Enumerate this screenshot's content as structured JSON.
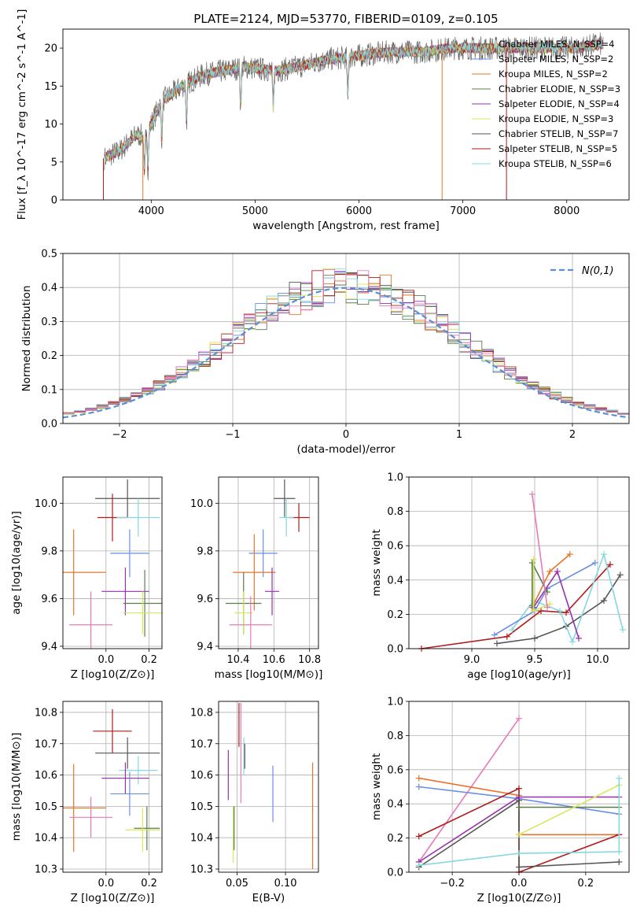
{
  "figure": {
    "title": "PLATE=2124, MJD=53770, FIBERID=0109, z=0.105"
  },
  "chart_data": [
    {
      "id": "spectrum",
      "type": "line",
      "xlabel": "wavelength [Angstrom, rest frame]",
      "ylabel": "Flux [f_λ 10^-17 erg cm^-2 s^-1 A^-1]",
      "xlim": [
        3150,
        8600
      ],
      "ylim": [
        0,
        22.5
      ],
      "xticks": [
        4000,
        5000,
        6000,
        7000,
        8000
      ],
      "yticks": [
        0,
        5,
        10,
        15,
        20
      ],
      "grid": false,
      "legend_position": "right",
      "series": [
        {
          "name": "Chabrier MILES, N_SSP=4",
          "color": "#5a7d4a"
        },
        {
          "name": "Salpeter MILES, N_SSP=2",
          "color": "#6a8ee0"
        },
        {
          "name": "Kroupa MILES, N_SSP=2",
          "color": "#e8742a"
        },
        {
          "name": "Chabrier ELODIE, N_SSP=3",
          "color": "#5a7d4a"
        },
        {
          "name": "Salpeter ELODIE, N_SSP=4",
          "color": "#9a2fae"
        },
        {
          "name": "Kroupa ELODIE, N_SSP=3",
          "color": "#d7e85a"
        },
        {
          "name": "Chabrier STELIB, N_SSP=7",
          "color": "#555555"
        },
        {
          "name": "Salpeter STELIB, N_SSP=5",
          "color": "#b01c1c"
        },
        {
          "name": "Kroupa STELIB, N_SSP=6",
          "color": "#86d8df"
        }
      ],
      "continuum_points": [
        [
          3550,
          5.5
        ],
        [
          3700,
          6.5
        ],
        [
          3850,
          8.5
        ],
        [
          3950,
          8.5
        ],
        [
          4100,
          13
        ],
        [
          4300,
          15
        ],
        [
          4500,
          16.5
        ],
        [
          4700,
          17
        ],
        [
          4900,
          17.5
        ],
        [
          5200,
          17
        ],
        [
          5400,
          17.5
        ],
        [
          5700,
          18.5
        ],
        [
          6000,
          19
        ],
        [
          6300,
          19.5
        ],
        [
          6600,
          19.5
        ],
        [
          6900,
          20
        ],
        [
          7200,
          20
        ],
        [
          7500,
          20
        ],
        [
          7800,
          20
        ],
        [
          8100,
          20
        ],
        [
          8300,
          20.5
        ]
      ],
      "absorption_lines": [
        3934,
        3969,
        4102,
        4340,
        4861,
        5175,
        5893
      ]
    },
    {
      "id": "residuals",
      "type": "bar",
      "xlabel": "(data-model)/error",
      "ylabel": "Normed distribution",
      "xlim": [
        -2.5,
        2.5
      ],
      "ylim": [
        0,
        0.5
      ],
      "xticks": [
        -2,
        -1,
        0,
        1,
        2
      ],
      "yticks": [
        0.0,
        0.1,
        0.2,
        0.3,
        0.4,
        0.5
      ],
      "grid": true,
      "legend": "N(0,1)",
      "legend_position": "top-right",
      "bin_width": 0.1,
      "reference_curve": "standard normal, dashed",
      "series_colors": [
        "#5a7d4a",
        "#6a8ee0",
        "#e8742a",
        "#5a7d4a",
        "#9a2fae",
        "#d7e85a",
        "#555555",
        "#b01c1c",
        "#86d8df",
        "#e87ab8"
      ]
    },
    {
      "id": "age_vs_Z",
      "type": "scatter",
      "xlabel": "Z [log10(Z/Z⊙)]",
      "ylabel": "age  [log10(age/yr)]",
      "xlim": [
        -0.2,
        0.26
      ],
      "ylim": [
        9.39,
        10.11
      ],
      "xticks": [
        0.0,
        0.2
      ],
      "yticks": [
        9.4,
        9.6,
        9.8,
        10.0
      ],
      "grid": true,
      "errorbars": [
        {
          "color": "#555555",
          "x": 0.1,
          "xerr": 0.15,
          "y": 10.02,
          "yerr": 0.08
        },
        {
          "color": "#b01c1c",
          "x": 0.03,
          "xerr": 0.07,
          "y": 9.94,
          "yerr": 0.1
        },
        {
          "color": "#86d8df",
          "x": 0.15,
          "xerr": 0.1,
          "y": 9.94,
          "yerr": 0.08
        },
        {
          "color": "#6a8ee0",
          "x": 0.11,
          "xerr": 0.09,
          "y": 9.79,
          "yerr": 0.1
        },
        {
          "color": "#e8742a",
          "x": -0.15,
          "xerr": 0.15,
          "y": 9.71,
          "yerr": 0.18
        },
        {
          "color": "#9a2fae",
          "x": 0.09,
          "xerr": 0.11,
          "y": 9.63,
          "yerr": 0.1
        },
        {
          "color": "#5a7d4a",
          "x": 0.18,
          "xerr": 0.1,
          "y": 9.58,
          "yerr": 0.14
        },
        {
          "color": "#d7e85a",
          "x": 0.17,
          "xerr": 0.09,
          "y": 9.54,
          "yerr": 0.09
        },
        {
          "color": "#e87ab8",
          "x": -0.07,
          "xerr": 0.1,
          "y": 9.49,
          "yerr": 0.14
        }
      ]
    },
    {
      "id": "age_vs_mass",
      "type": "scatter",
      "xlabel": "mass [log10(M/M⊙)]",
      "ylabel": "",
      "xlim": [
        10.29,
        10.85
      ],
      "ylim": [
        9.39,
        10.11
      ],
      "xticks": [
        10.4,
        10.6,
        10.8
      ],
      "yticks": [
        9.4,
        9.6,
        9.8,
        10.0
      ],
      "grid": true,
      "errorbars": [
        {
          "color": "#555555",
          "x": 10.66,
          "xerr": 0.06,
          "y": 10.02,
          "yerr": 0.08
        },
        {
          "color": "#b01c1c",
          "x": 10.74,
          "xerr": 0.06,
          "y": 9.94,
          "yerr": 0.06
        },
        {
          "color": "#86d8df",
          "x": 10.67,
          "xerr": 0.04,
          "y": 9.94,
          "yerr": 0.08
        },
        {
          "color": "#6a8ee0",
          "x": 10.54,
          "xerr": 0.08,
          "y": 9.79,
          "yerr": 0.1
        },
        {
          "color": "#e8742a",
          "x": 10.49,
          "xerr": 0.12,
          "y": 9.71,
          "yerr": 0.16
        },
        {
          "color": "#9a2fae",
          "x": 10.59,
          "xerr": 0.04,
          "y": 9.63,
          "yerr": 0.1
        },
        {
          "color": "#5a7d4a",
          "x": 10.43,
          "xerr": 0.1,
          "y": 9.58,
          "yerr": 0.13
        },
        {
          "color": "#d7e85a",
          "x": 10.43,
          "xerr": 0.05,
          "y": 9.54,
          "yerr": 0.09
        },
        {
          "color": "#e87ab8",
          "x": 10.47,
          "xerr": 0.12,
          "y": 9.49,
          "yerr": 0.12
        }
      ]
    },
    {
      "id": "weight_vs_age",
      "type": "line",
      "xlabel": "age  [log10(age/yr)]",
      "ylabel": "mass weight",
      "xlim": [
        8.5,
        10.25
      ],
      "ylim": [
        0,
        1.0
      ],
      "xticks": [
        9.0,
        9.5,
        10.0
      ],
      "yticks": [
        0.0,
        0.2,
        0.4,
        0.6,
        0.8,
        1.0
      ],
      "grid": true,
      "series": [
        {
          "color": "#555555",
          "points": [
            [
              9.2,
              0.03
            ],
            [
              9.5,
              0.06
            ],
            [
              9.75,
              0.13
            ],
            [
              10.05,
              0.28
            ],
            [
              10.18,
              0.43
            ]
          ]
        },
        {
          "color": "#b01c1c",
          "points": [
            [
              8.6,
              0.0
            ],
            [
              9.28,
              0.07
            ],
            [
              9.55,
              0.22
            ],
            [
              9.75,
              0.21
            ],
            [
              10.1,
              0.49
            ]
          ]
        },
        {
          "color": "#86d8df",
          "points": [
            [
              9.32,
              0.11
            ],
            [
              9.49,
              0.28
            ],
            [
              9.7,
              0.22
            ],
            [
              9.8,
              0.04
            ],
            [
              10.05,
              0.55
            ],
            [
              10.2,
              0.11
            ]
          ]
        },
        {
          "color": "#6a8ee0",
          "points": [
            [
              9.18,
              0.08
            ],
            [
              9.5,
              0.22
            ],
            [
              9.6,
              0.35
            ],
            [
              9.98,
              0.5
            ]
          ]
        },
        {
          "color": "#e8742a",
          "points": [
            [
              9.48,
              0.24
            ],
            [
              9.62,
              0.45
            ],
            [
              9.78,
              0.55
            ]
          ]
        },
        {
          "color": "#9a2fae",
          "points": [
            [
              9.49,
              0.24
            ],
            [
              9.68,
              0.45
            ],
            [
              9.85,
              0.06
            ]
          ]
        },
        {
          "color": "#5a7d4a",
          "points": [
            [
              9.48,
              0.25
            ],
            [
              9.48,
              0.5
            ],
            [
              9.6,
              0.33
            ]
          ]
        },
        {
          "color": "#d7e85a",
          "points": [
            [
              9.49,
              0.52
            ],
            [
              9.49,
              0.22
            ],
            [
              9.62,
              0.26
            ]
          ]
        },
        {
          "color": "#e87ab8",
          "points": [
            [
              9.48,
              0.9
            ],
            [
              9.6,
              0.24
            ]
          ]
        }
      ]
    },
    {
      "id": "mass_vs_Z",
      "type": "scatter",
      "xlabel": "Z [log10(Z/Z⊙)]",
      "ylabel": "mass [log10(M/M⊙)]",
      "xlim": [
        -0.2,
        0.26
      ],
      "ylim": [
        10.29,
        10.835
      ],
      "xticks": [
        0.0,
        0.2
      ],
      "yticks": [
        10.3,
        10.4,
        10.5,
        10.6,
        10.7,
        10.8
      ],
      "grid": true,
      "errorbars": [
        {
          "color": "#b01c1c",
          "x": 0.03,
          "xerr": 0.09,
          "y": 10.74,
          "yerr": 0.07
        },
        {
          "color": "#555555",
          "x": 0.1,
          "xerr": 0.15,
          "y": 10.67,
          "yerr": 0.05
        },
        {
          "color": "#86d8df",
          "x": 0.15,
          "xerr": 0.09,
          "y": 10.615,
          "yerr": 0.045
        },
        {
          "color": "#9a2fae",
          "x": 0.09,
          "xerr": 0.11,
          "y": 10.59,
          "yerr": 0.05
        },
        {
          "color": "#6a8ee0",
          "x": 0.11,
          "xerr": 0.09,
          "y": 10.54,
          "yerr": 0.07
        },
        {
          "color": "#e8742a",
          "x": -0.15,
          "xerr": 0.15,
          "y": 10.495,
          "yerr": 0.14
        },
        {
          "color": "#e87ab8",
          "x": -0.07,
          "xerr": 0.1,
          "y": 10.465,
          "yerr": 0.065
        },
        {
          "color": "#5a7d4a",
          "x": 0.19,
          "xerr": 0.06,
          "y": 10.43,
          "yerr": 0.07
        },
        {
          "color": "#d7e85a",
          "x": 0.17,
          "xerr": 0.08,
          "y": 10.425,
          "yerr": 0.07
        }
      ]
    },
    {
      "id": "mass_vs_ebv",
      "type": "scatter",
      "xlabel": "E(B-V)",
      "ylabel": "",
      "xlim": [
        0.031,
        0.134
      ],
      "ylim": [
        10.29,
        10.835
      ],
      "xticks": [
        0.05,
        0.1
      ],
      "yticks": [
        10.3,
        10.4,
        10.5,
        10.6,
        10.7,
        10.8
      ],
      "grid": true,
      "errorbars": [
        {
          "color": "#b01c1c",
          "x": 0.052,
          "y": 10.76,
          "yerr": 0.07
        },
        {
          "color": "#86d8df",
          "x": 0.057,
          "y": 10.66,
          "yerr": 0.06
        },
        {
          "color": "#555555",
          "x": 0.058,
          "y": 10.66,
          "yerr": 0.04
        },
        {
          "color": "#9a2fae",
          "x": 0.041,
          "y": 10.6,
          "yerr": 0.08
        },
        {
          "color": "#6a8ee0",
          "x": 0.087,
          "y": 10.54,
          "yerr": 0.09
        },
        {
          "color": "#e8742a",
          "x": 0.128,
          "y": 10.47,
          "yerr": 0.17
        },
        {
          "color": "#d7e85a",
          "x": 0.046,
          "y": 10.41,
          "yerr": 0.09
        },
        {
          "color": "#5a7d4a",
          "x": 0.047,
          "y": 10.43,
          "yerr": 0.07
        },
        {
          "color": "#e87ab8",
          "x": 0.054,
          "y": 10.67,
          "yerr": 0.16
        }
      ]
    },
    {
      "id": "weight_vs_Z",
      "type": "line",
      "xlabel": "Z [log10(Z/Z⊙)]",
      "ylabel": "mass weight",
      "xlim": [
        -0.33,
        0.33
      ],
      "ylim": [
        0,
        1.0
      ],
      "xticks": [
        -0.2,
        0.0,
        0.2
      ],
      "yticks": [
        0.0,
        0.2,
        0.4,
        0.6,
        0.8,
        1.0
      ],
      "grid": true,
      "series": [
        {
          "color": "#e87ab8",
          "points": [
            [
              -0.3,
              0.06
            ],
            [
              0.0,
              0.9
            ]
          ]
        },
        {
          "color": "#e8742a",
          "points": [
            [
              -0.3,
              0.55
            ],
            [
              0.0,
              0.45
            ],
            [
              0.0,
              0.22
            ],
            [
              0.3,
              0.22
            ]
          ]
        },
        {
          "color": "#6a8ee0",
          "points": [
            [
              -0.3,
              0.5
            ],
            [
              0.0,
              0.43
            ],
            [
              0.3,
              0.34
            ]
          ]
        },
        {
          "color": "#b01c1c",
          "points": [
            [
              -0.3,
              0.21
            ],
            [
              0.0,
              0.49
            ],
            [
              0.0,
              0.0
            ],
            [
              0.3,
              0.22
            ]
          ]
        },
        {
          "color": "#9a2fae",
          "points": [
            [
              -0.3,
              0.06
            ],
            [
              0.0,
              0.44
            ],
            [
              0.3,
              0.44
            ]
          ]
        },
        {
          "color": "#555555",
          "points": [
            [
              -0.3,
              0.03
            ],
            [
              0.0,
              0.42
            ],
            [
              0.0,
              0.03
            ],
            [
              0.3,
              0.06
            ]
          ]
        },
        {
          "color": "#5a7d4a",
          "points": [
            [
              0.0,
              0.38
            ],
            [
              0.3,
              0.38
            ]
          ]
        },
        {
          "color": "#d7e85a",
          "points": [
            [
              0.0,
              0.22
            ],
            [
              0.3,
              0.51
            ]
          ]
        },
        {
          "color": "#86d8df",
          "points": [
            [
              -0.3,
              0.04
            ],
            [
              0.0,
              0.11
            ],
            [
              0.3,
              0.12
            ],
            [
              0.3,
              0.55
            ]
          ]
        }
      ]
    }
  ]
}
